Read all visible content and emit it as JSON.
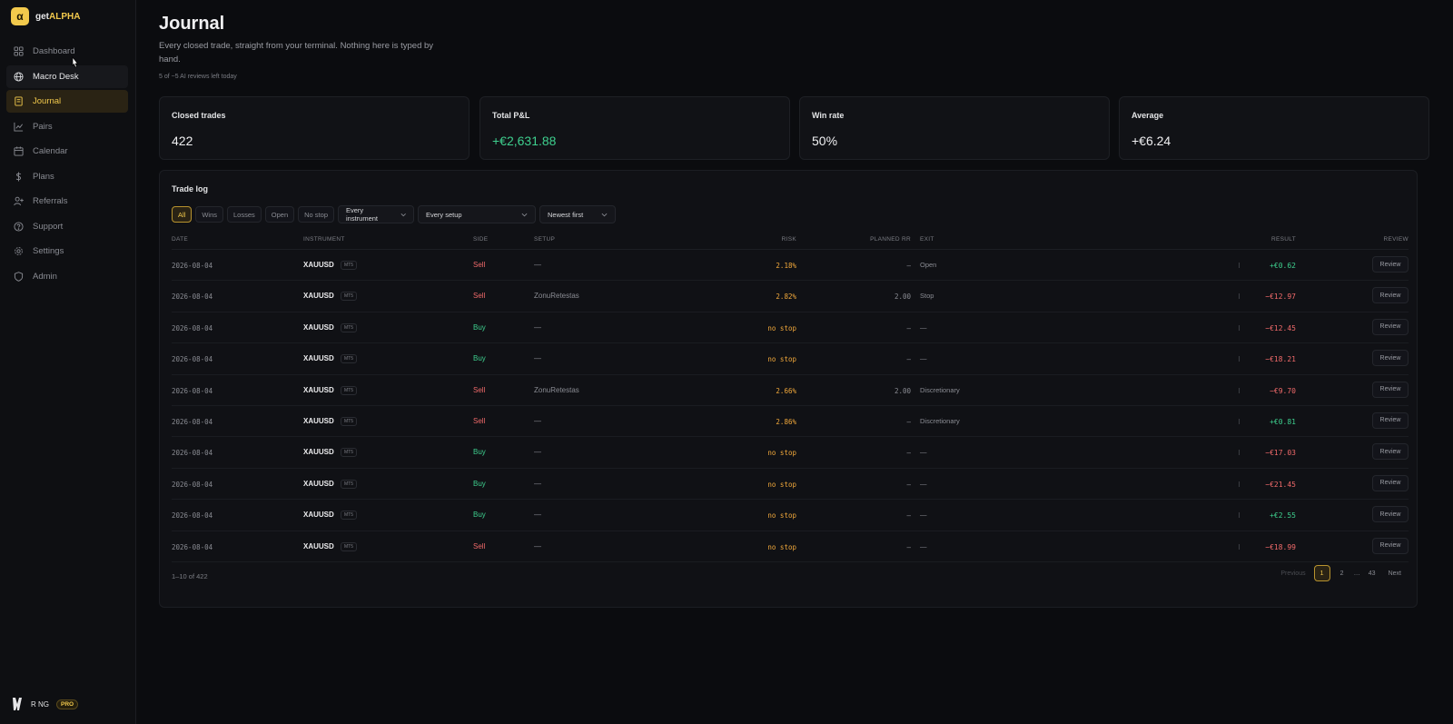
{
  "brand": {
    "logo_letter": "α",
    "name_prefix": "get",
    "name_accent": "ALPHA",
    "accent_color": "#f2c94c"
  },
  "sidebar": {
    "items": [
      {
        "label": "Dashboard",
        "icon": "grid-icon"
      },
      {
        "label": "Macro Desk",
        "icon": "globe-icon"
      },
      {
        "label": "Journal",
        "icon": "book-icon"
      },
      {
        "label": "Pairs",
        "icon": "chart-line-icon"
      },
      {
        "label": "Calendar",
        "icon": "calendar-icon"
      },
      {
        "label": "Plans",
        "icon": "dollar-icon"
      },
      {
        "label": "Referrals",
        "icon": "user-plus-icon"
      },
      {
        "label": "Support",
        "icon": "help-circle-icon"
      },
      {
        "label": "Settings",
        "icon": "gear-icon"
      },
      {
        "label": "Admin",
        "icon": "shield-icon"
      }
    ],
    "active": "Journal",
    "hovered": "Macro Desk"
  },
  "user": {
    "name": "R NG",
    "badge": "PRO"
  },
  "header": {
    "title": "Journal",
    "subtitle": "Every closed trade, straight from your terminal. Nothing here is typed by hand.",
    "ai_reviews": "5 of ~5 AI reviews left today"
  },
  "stats": [
    {
      "label": "Closed trades",
      "value": "422"
    },
    {
      "label": "Total P&L",
      "value": "+€2,631.88"
    },
    {
      "label": "Win rate",
      "value": "50%"
    },
    {
      "label": "Average",
      "value": "+€6.24"
    }
  ],
  "trade_log": {
    "title": "Trade log",
    "filters": [
      "All",
      "Wins",
      "Losses",
      "Open",
      "No stop"
    ],
    "active_filter": "All",
    "instrument_select": "Every instrument",
    "setup_select": "Every setup",
    "sort_select": "Newest first",
    "columns": {
      "date": "DATE",
      "instrument": "INSTRUMENT",
      "side": "SIDE",
      "setup": "SETUP",
      "risk": "RISK",
      "planned_rr": "PLANNED RR",
      "exit": "EXIT",
      "result": "RESULT",
      "review": "REVIEW"
    },
    "rows": [
      {
        "date": "2026-08-04",
        "instrument": "XAUUSD",
        "tag": "MT5",
        "side": "Sell",
        "setup": "—",
        "risk": "2.18%",
        "rr": "—",
        "exit": "Open",
        "result": "+€0.62",
        "review": "Review"
      },
      {
        "date": "2026-08-04",
        "instrument": "XAUUSD",
        "tag": "MT5",
        "side": "Sell",
        "setup": "ZonuRetestas",
        "risk": "2.82%",
        "rr": "2.00",
        "exit": "Stop",
        "result": "−€12.97",
        "review": "Review"
      },
      {
        "date": "2026-08-04",
        "instrument": "XAUUSD",
        "tag": "MT5",
        "side": "Buy",
        "setup": "—",
        "risk": "no stop",
        "rr": "—",
        "exit": "—",
        "result": "−€12.45",
        "review": "Review"
      },
      {
        "date": "2026-08-04",
        "instrument": "XAUUSD",
        "tag": "MT5",
        "side": "Buy",
        "setup": "—",
        "risk": "no stop",
        "rr": "—",
        "exit": "—",
        "result": "−€18.21",
        "review": "Review"
      },
      {
        "date": "2026-08-04",
        "instrument": "XAUUSD",
        "tag": "MT5",
        "side": "Sell",
        "setup": "ZonuRetestas",
        "risk": "2.66%",
        "rr": "2.00",
        "exit": "Discretionary",
        "result": "−€9.70",
        "review": "Review"
      },
      {
        "date": "2026-08-04",
        "instrument": "XAUUSD",
        "tag": "MT5",
        "side": "Sell",
        "setup": "—",
        "risk": "2.86%",
        "rr": "—",
        "exit": "Discretionary",
        "result": "+€0.81",
        "review": "Review"
      },
      {
        "date": "2026-08-04",
        "instrument": "XAUUSD",
        "tag": "MT5",
        "side": "Buy",
        "setup": "—",
        "risk": "no stop",
        "rr": "—",
        "exit": "—",
        "result": "−€17.03",
        "review": "Review"
      },
      {
        "date": "2026-08-04",
        "instrument": "XAUUSD",
        "tag": "MT5",
        "side": "Buy",
        "setup": "—",
        "risk": "no stop",
        "rr": "—",
        "exit": "—",
        "result": "−€21.45",
        "review": "Review"
      },
      {
        "date": "2026-08-04",
        "instrument": "XAUUSD",
        "tag": "MT5",
        "side": "Buy",
        "setup": "—",
        "risk": "no stop",
        "rr": "—",
        "exit": "—",
        "result": "+€2.55",
        "review": "Review"
      },
      {
        "date": "2026-08-04",
        "instrument": "XAUUSD",
        "tag": "MT5",
        "side": "Sell",
        "setup": "—",
        "risk": "no stop",
        "rr": "—",
        "exit": "—",
        "result": "−€18.99",
        "review": "Review"
      }
    ],
    "range_text": "1–10 of 422",
    "pagination": {
      "previous": "Previous",
      "pages": [
        "1",
        "2",
        "…",
        "43"
      ],
      "current": "1",
      "next": "Next"
    }
  },
  "colors": {
    "positive": "#3ecf8e",
    "negative": "#f06a6a",
    "accent": "#f2c94c",
    "risk": "#f2a93b"
  }
}
